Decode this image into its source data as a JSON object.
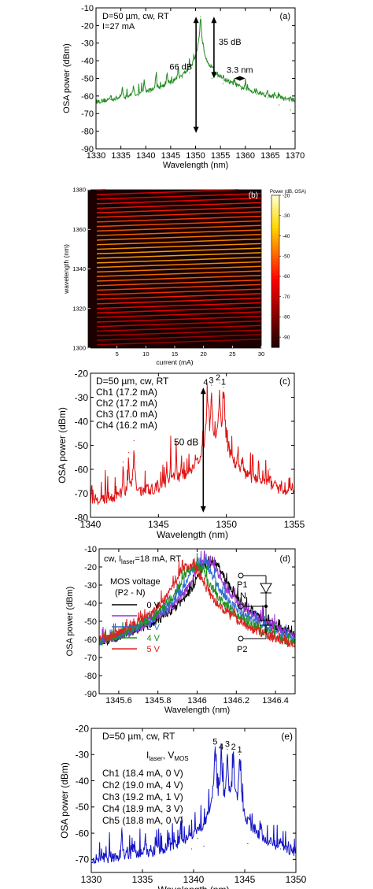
{
  "chart_data": [
    {
      "panel": "(a)",
      "type": "line",
      "xlabel": "Wavelength (nm)",
      "ylabel": "OSA power (dBm)",
      "xlim": [
        1330,
        1370
      ],
      "ylim": [
        -90,
        -10
      ],
      "xticks": [
        1330,
        1335,
        1340,
        1345,
        1350,
        1355,
        1360,
        1365,
        1370
      ],
      "yticks": [
        -90,
        -80,
        -70,
        -60,
        -50,
        -40,
        -30,
        -20,
        -10
      ],
      "color": "#228b22",
      "noise_floor": -83,
      "peaks": [
        {
          "x": 1333.0,
          "y": -62
        },
        {
          "x": 1335.3,
          "y": -57
        },
        {
          "x": 1337.5,
          "y": -55
        },
        {
          "x": 1339.7,
          "y": -52
        },
        {
          "x": 1342.0,
          "y": -49
        },
        {
          "x": 1344.3,
          "y": -47
        },
        {
          "x": 1346.5,
          "y": -45
        },
        {
          "x": 1348.8,
          "y": -47
        },
        {
          "x": 1351.0,
          "y": -15
        },
        {
          "x": 1353.3,
          "y": -50
        },
        {
          "x": 1355.5,
          "y": -53
        },
        {
          "x": 1357.8,
          "y": -52
        },
        {
          "x": 1360.0,
          "y": -56
        },
        {
          "x": 1362.3,
          "y": -59
        },
        {
          "x": 1364.5,
          "y": -61
        },
        {
          "x": 1366.8,
          "y": -65
        },
        {
          "x": 1369.1,
          "y": -68
        }
      ],
      "legend_lines": [
        "D=50 µm, cw, RT",
        "I=27 mA"
      ],
      "annotations": [
        "66 dB",
        "35 dB",
        "3.3 nm"
      ]
    },
    {
      "panel": "(b)",
      "type": "heatmap",
      "xlabel": "current (mA)",
      "ylabel": "wavelength (nm)",
      "xlim": [
        0,
        30
      ],
      "ylim": [
        1300,
        1380
      ],
      "xticks": [
        5,
        10,
        15,
        20,
        25,
        30
      ],
      "yticks": [
        1300,
        1320,
        1340,
        1360,
        1380
      ],
      "colorbar_title": "Power (dB, OSA)",
      "colorbar_range": [
        -95,
        -20
      ],
      "colorbar_ticks": [
        -20,
        -30,
        -40,
        -50,
        -60,
        -70,
        -80,
        -90
      ],
      "mode_count": 35,
      "mode_start_nm": 1301.5,
      "mode_spacing_nm": 2.3,
      "tuning_nm_per_mA": 0.1,
      "brightest_mode_nm": 1346
    },
    {
      "panel": "(c)",
      "type": "line",
      "xlabel": "Wavelength (nm)",
      "ylabel": "OSA power (dBm)",
      "xlim": [
        1340,
        1355
      ],
      "ylim": [
        -80,
        -20
      ],
      "xticks": [
        1340,
        1345,
        1350,
        1355
      ],
      "yticks": [
        -80,
        -70,
        -60,
        -50,
        -40,
        -30,
        -20
      ],
      "color": "#e01010",
      "noise_floor": -77,
      "peaks": [
        {
          "x": 1342.4,
          "y": -57
        },
        {
          "x": 1342.8,
          "y": -53
        },
        {
          "x": 1343.2,
          "y": -48
        },
        {
          "x": 1345.6,
          "y": -57
        },
        {
          "x": 1345.9,
          "y": -56
        },
        {
          "x": 1346.3,
          "y": -50
        },
        {
          "x": 1346.7,
          "y": -56
        },
        {
          "x": 1348.6,
          "y": -26
        },
        {
          "x": 1348.9,
          "y": -25
        },
        {
          "x": 1349.5,
          "y": -24
        },
        {
          "x": 1349.8,
          "y": -26
        },
        {
          "x": 1352.0,
          "y": -62
        },
        {
          "x": 1352.4,
          "y": -58
        },
        {
          "x": 1352.9,
          "y": -58
        },
        {
          "x": 1353.2,
          "y": -60
        }
      ],
      "legend_lines": [
        "D=50 µm, cw, RT",
        "Ch1 (17.2 mA)",
        "Ch2 (17.2 mA)",
        "Ch3 (17.0 mA)",
        "Ch4 (16.2 mA)"
      ],
      "peak_labels": [
        "4",
        "3",
        "2",
        "1"
      ],
      "annotations": [
        "50 dB"
      ]
    },
    {
      "panel": "(d)",
      "type": "line",
      "xlabel": "Wavelength (nm)",
      "ylabel": "OSA power (dBm)",
      "xlim": [
        1345.5,
        1346.5
      ],
      "ylim": [
        -90,
        -10
      ],
      "xticks": [
        1345.6,
        1345.8,
        1346.0,
        1346.2,
        1346.4
      ],
      "yticks": [
        -90,
        -80,
        -70,
        -60,
        -50,
        -40,
        -30,
        -20,
        -10
      ],
      "legend_title": "MOS voltage",
      "legend_subtitle": "(P2 - N)",
      "header_parts": [
        "cw, I",
        "laser",
        "=18 mA, RT"
      ],
      "series": [
        {
          "name": "0 V",
          "color": "#000000",
          "center": 1346.07,
          "peak": -18
        },
        {
          "name": "1 V",
          "color": "#9b30d0",
          "center": 1346.05,
          "peak": -18
        },
        {
          "name": "2 V",
          "color": "#2f6fd0",
          "center": 1346.02,
          "peak": -19
        },
        {
          "name": "4 V",
          "color": "#1f8f1f",
          "center": 1345.99,
          "peak": -20
        },
        {
          "name": "5 V",
          "color": "#dd2222",
          "center": 1345.96,
          "peak": -20
        }
      ],
      "circuit_labels": [
        "P1",
        "N",
        "P2"
      ]
    },
    {
      "panel": "(e)",
      "type": "line",
      "xlabel": "Wavelength (nm)",
      "ylabel": "OSA power (dBm)",
      "xlim": [
        1330,
        1350
      ],
      "ylim": [
        -75,
        -20
      ],
      "xticks": [
        1330,
        1335,
        1340,
        1345,
        1350
      ],
      "yticks": [
        -70,
        -60,
        -50,
        -40,
        -30,
        -20
      ],
      "color": "#1515c8",
      "noise_floor": -72,
      "peaks": [
        {
          "x": 1331.0,
          "y": -66
        },
        {
          "x": 1333.0,
          "y": -58
        },
        {
          "x": 1334.1,
          "y": -67
        },
        {
          "x": 1335.3,
          "y": -62
        },
        {
          "x": 1336.4,
          "y": -60
        },
        {
          "x": 1337.6,
          "y": -64
        },
        {
          "x": 1338.7,
          "y": -60
        },
        {
          "x": 1339.8,
          "y": -66
        },
        {
          "x": 1340.4,
          "y": -62
        },
        {
          "x": 1341.0,
          "y": -65
        },
        {
          "x": 1342.1,
          "y": -27
        },
        {
          "x": 1342.7,
          "y": -29
        },
        {
          "x": 1343.3,
          "y": -28
        },
        {
          "x": 1343.9,
          "y": -29
        },
        {
          "x": 1344.5,
          "y": -30
        },
        {
          "x": 1345.3,
          "y": -64
        },
        {
          "x": 1346.0,
          "y": -60
        },
        {
          "x": 1346.6,
          "y": -58
        },
        {
          "x": 1347.5,
          "y": -64
        },
        {
          "x": 1348.5,
          "y": -66
        }
      ],
      "legend_lines": [
        "D=50 µm, cw, RT",
        "Ch1 (18.4 mA, 0 V)",
        "Ch2 (19.0 mA, 4 V)",
        "Ch3 (19.2 mA, 1 V)",
        "Ch4 (18.9 mA, 3 V)",
        "Ch5 (18.8 mA, 0 V)"
      ],
      "legend_header_parts": [
        "I",
        "laser",
        ", V",
        "MOS"
      ],
      "peak_labels": [
        "5",
        "4",
        "3",
        "2",
        "1"
      ]
    }
  ]
}
